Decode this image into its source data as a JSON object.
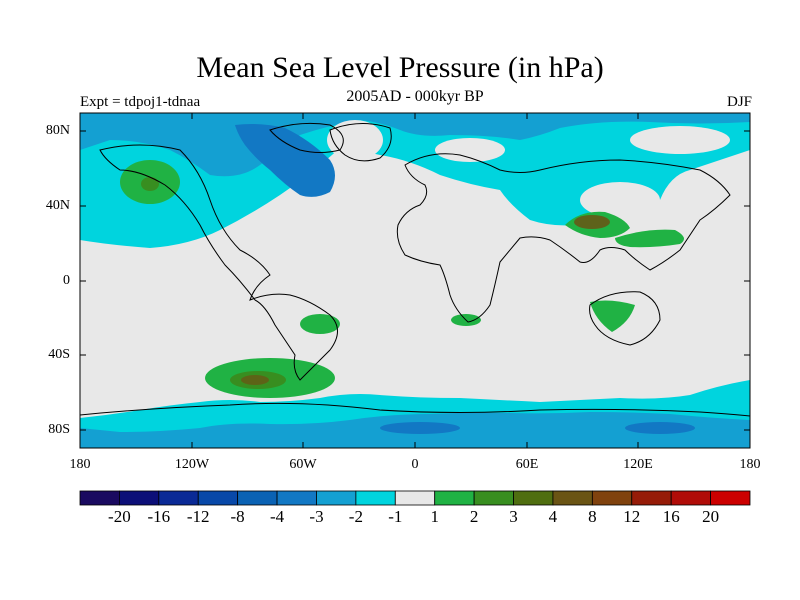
{
  "title": "Mean Sea Level Pressure (in hPa)",
  "subtitle": "2005AD - 000kyr BP",
  "left_label": "Expt = tdpoj1-tdnaa",
  "right_label": "DJF",
  "lat_labels": [
    "80N",
    "40N",
    "0",
    "40S",
    "80S"
  ],
  "lon_labels": [
    "180",
    "120W",
    "60W",
    "0",
    "60E",
    "120E",
    "180"
  ],
  "colorbar": {
    "colors": [
      "#1a0a60",
      "#0c0f78",
      "#0a2a96",
      "#0848a8",
      "#0a62b4",
      "#1278c4",
      "#14a0d2",
      "#00d4de",
      "#e8e8e8",
      "#20b244",
      "#388e20",
      "#4f6e10",
      "#6a5414",
      "#80420e",
      "#961c08",
      "#b00c08",
      "#cc0000"
    ],
    "labels": [
      "-20",
      "-16",
      "-12",
      "-8",
      "-4",
      "-3",
      "-2",
      "-1",
      "1",
      "2",
      "3",
      "4",
      "8",
      "12",
      "16",
      "20"
    ]
  },
  "colors": {
    "neutral": "#e8e8e8",
    "cyan": "#00d4de",
    "light_blue": "#14a0d2",
    "mid_blue": "#1278c4",
    "green": "#20b244",
    "dark_green": "#388e20",
    "olive": "#6a5414"
  }
}
